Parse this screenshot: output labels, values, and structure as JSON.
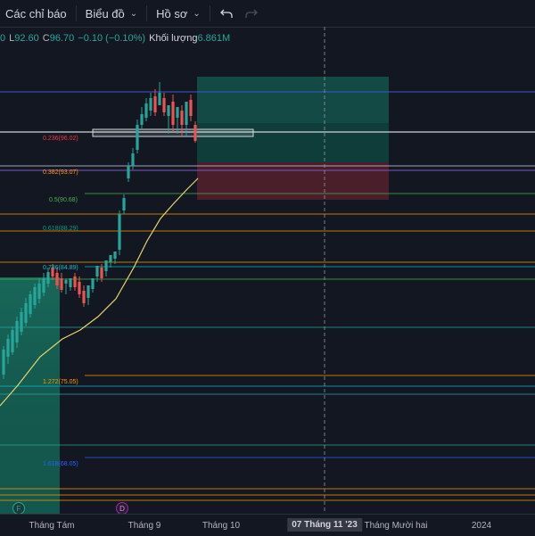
{
  "toolbar": {
    "indicators_label": "Các chỉ báo",
    "chart_label": "Biểu đồ",
    "profile_label": "Hồ sơ"
  },
  "legend": {
    "open_fragment": "0",
    "low_label": "L",
    "low_value": "92.60",
    "close_label": "C",
    "close_value": "96.70",
    "change": "−0.10 (−0.10%)",
    "volume_label": "Khối lượng",
    "volume_value": "6.861M"
  },
  "fib_levels": [
    {
      "label": "0.236(96.02)",
      "color": "#f23645"
    },
    {
      "label": "0.382(93.07)",
      "color": "#ff9800"
    },
    {
      "label": "0.5(90.68)",
      "color": "#4caf50"
    },
    {
      "label": "0.618(88.29)",
      "color": "#089981"
    },
    {
      "label": "0.786(84.89)",
      "color": "#00bcd4"
    },
    {
      "label": "1.272(75.05)",
      "color": "#ff9800"
    },
    {
      "label": "1.618(68.05)",
      "color": "#2962ff"
    }
  ],
  "xaxis": {
    "ticks": [
      "Tháng Tám",
      "Tháng 9",
      "Tháng 10",
      "Tháng Mười hai",
      "2024"
    ],
    "crosshair_label": "07 Tháng 11 '23"
  },
  "markers": {
    "f": "F",
    "d": "D"
  },
  "colors": {
    "up": "#26a69a",
    "down": "#ef5350",
    "ma": "#e6d66a",
    "bg": "#131722"
  }
}
